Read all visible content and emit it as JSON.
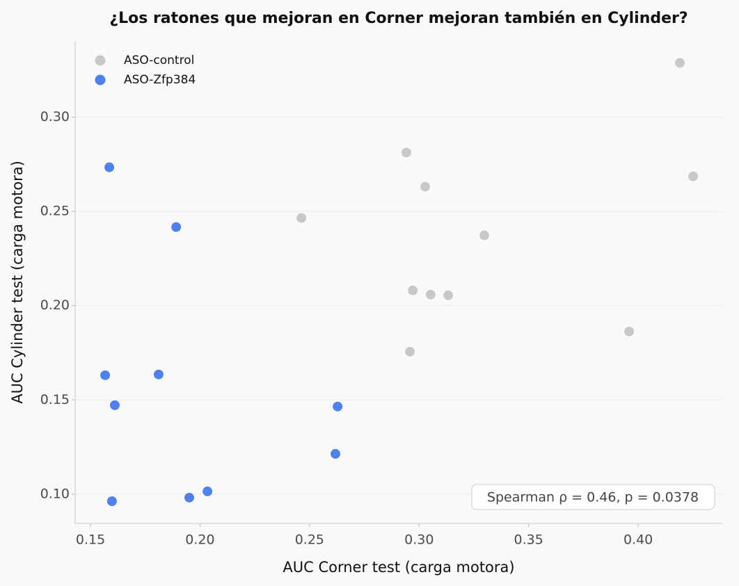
{
  "chart_data": {
    "type": "scatter",
    "title": "¿Los ratones que mejoran en Corner mejoran también en Cylinder?",
    "x_label": "AUC Corner test (carga motora)",
    "y_label": "AUC Cylinder test (carga motora)",
    "annotation": "Spearman ρ = 0.46, p = 0.0378",
    "xlim": [
      0.143,
      0.4384
    ],
    "ylim": [
      0.0845,
      0.34
    ],
    "xticks": [
      0.15,
      {
        "value": 0.2,
        "label": "0.20"
      },
      0.25,
      {
        "value": 0.3,
        "label": "0.30"
      },
      0.35,
      {
        "value": 0.4,
        "label": "0.40"
      }
    ],
    "yticks": [
      {
        "value": 0.1,
        "label": "0.10"
      },
      0.15,
      {
        "value": 0.2,
        "label": "0.20"
      },
      0.25,
      {
        "value": 0.3,
        "label": "0.30"
      }
    ],
    "grid": true,
    "legend": "upper left",
    "series": [
      {
        "name": "ASO-control",
        "color": "#c8c8c8",
        "x": [
          0.419,
          0.2942,
          0.3028,
          0.4251,
          0.2463,
          0.3298,
          0.2971,
          0.3053,
          0.3133,
          0.3959,
          0.2958
        ],
        "y": [
          0.3288,
          0.2812,
          0.2631,
          0.2686,
          0.2465,
          0.2373,
          0.2081,
          0.2059,
          0.2055,
          0.1863,
          0.1756
        ]
      },
      {
        "name": "ASO-Zfp384",
        "color": "#4f81ee",
        "x": [
          0.1586,
          0.1891,
          0.1567,
          0.1811,
          0.1611,
          0.2628,
          0.2618,
          0.1598,
          0.1951,
          0.2034
        ],
        "y": [
          0.2734,
          0.2417,
          0.1631,
          0.1635,
          0.1472,
          0.1465,
          0.1214,
          0.0963,
          0.0982,
          0.1015
        ]
      }
    ]
  }
}
